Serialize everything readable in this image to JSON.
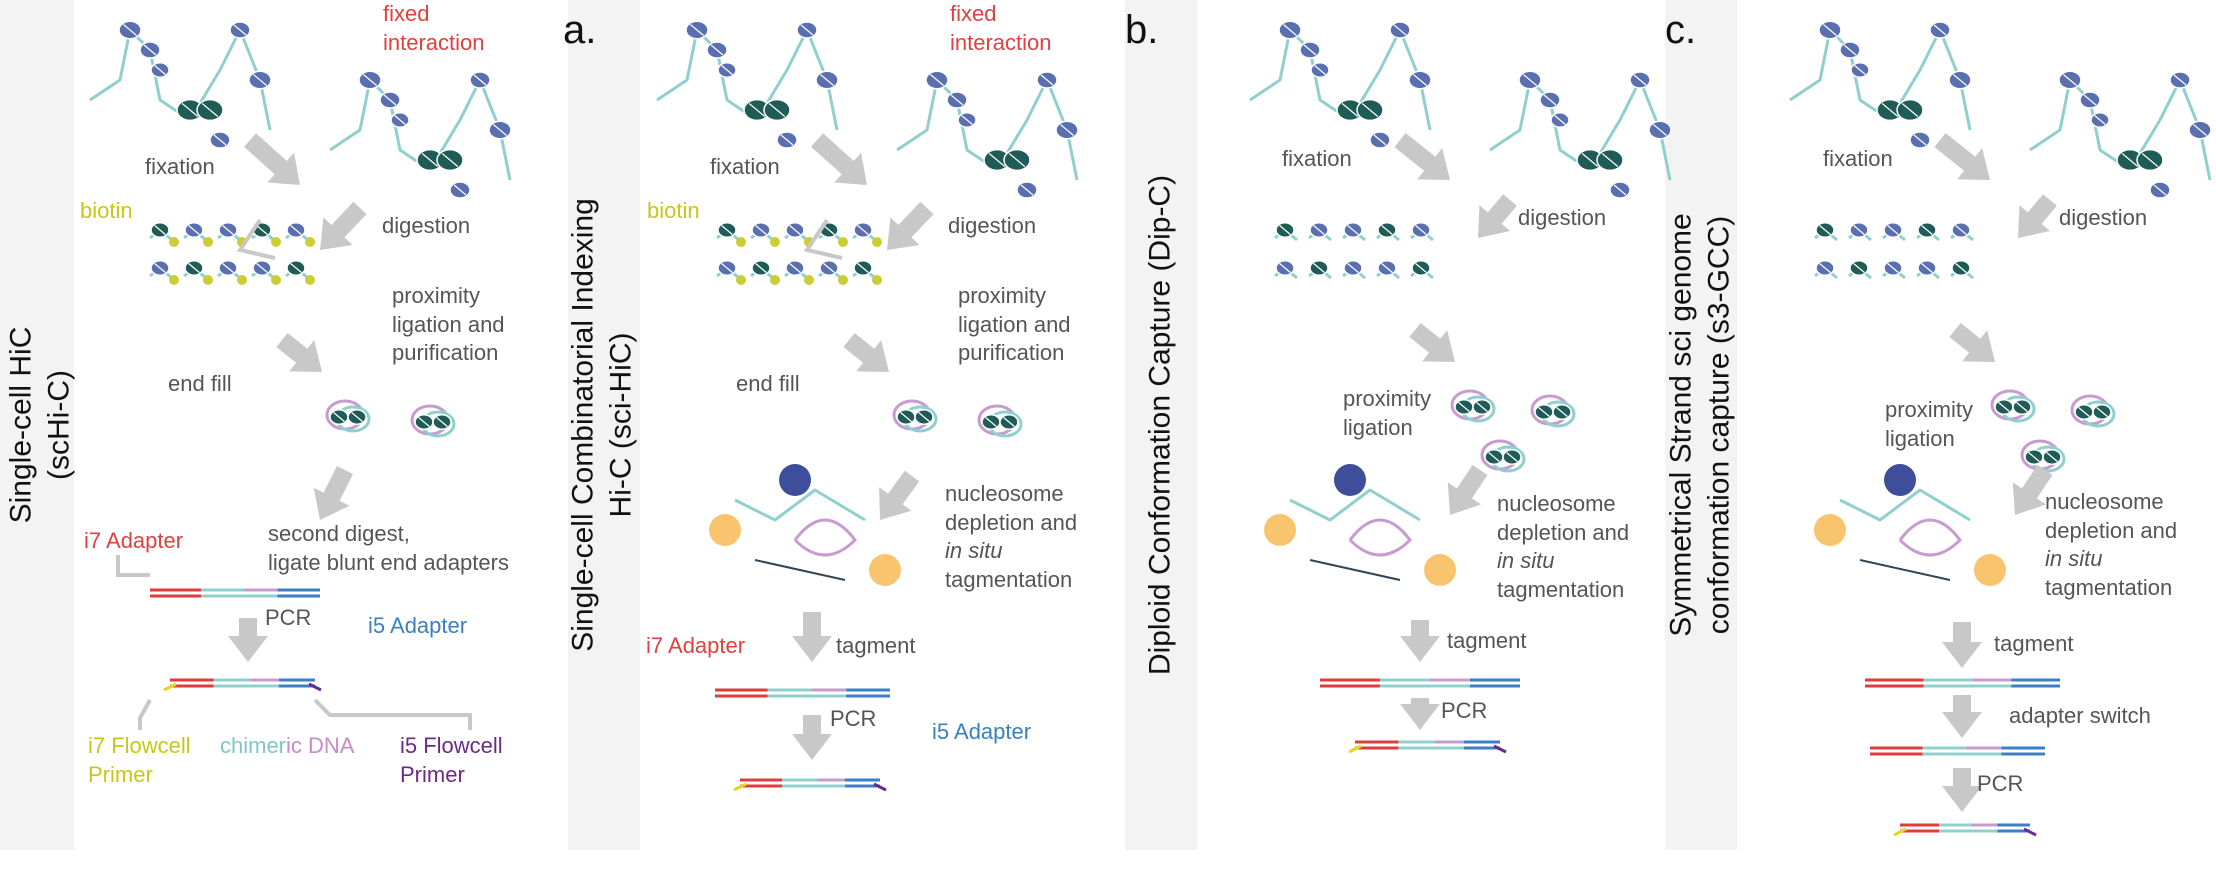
{
  "panels": {
    "schic": {
      "side_title_line1": "Single-cell HiC",
      "side_title_line2": "(scHi-C)",
      "labels": {
        "fixed_interaction_1": "fixed",
        "fixed_interaction_2": "interaction",
        "fixation": "fixation",
        "biotin": "biotin",
        "digestion": "digestion",
        "proximity_1": "proximity",
        "proximity_2": "ligation and",
        "proximity_3": "purification",
        "end_fill": "end fill",
        "second_digest_1": "second digest,",
        "second_digest_2": "ligate blunt end adapters",
        "i7_adapter": "i7 Adapter",
        "pcr": "PCR",
        "i5_adapter": "i5 Adapter",
        "i7_flowcell_1": "i7 Flowcell",
        "i7_flowcell_2": "Primer",
        "chimeric_a": "chimer",
        "chimeric_b": "ic DNA",
        "i5_flowcell_1": "i5 Flowcell",
        "i5_flowcell_2": "Primer"
      }
    },
    "scihic": {
      "letter": "a.",
      "side_title_line1": "Single-cell Combinatorial Indexing",
      "side_title_line2": "Hi-C (sci-HiC)",
      "labels": {
        "fixed_interaction_1": "fixed",
        "fixed_interaction_2": "interaction",
        "fixation": "fixation",
        "biotin": "biotin",
        "digestion": "digestion",
        "proximity_1": "proximity",
        "proximity_2": "ligation and",
        "proximity_3": "purification",
        "end_fill": "end fill",
        "nucleosome_1": "nucleosome",
        "nucleosome_2": "depletion and",
        "nucleosome_3a": "in situ",
        "nucleosome_4": "tagmentation",
        "i7_adapter": "i7 Adapter",
        "tagment": "tagment",
        "pcr": "PCR",
        "i5_adapter": "i5 Adapter"
      }
    },
    "dipc": {
      "letter": "b.",
      "side_title_line1": "Diploid Conformation Capture (Dip-C)",
      "labels": {
        "fixation": "fixation",
        "digestion": "digestion",
        "proximity_1": "proximity",
        "proximity_2": "ligation",
        "nucleosome_1": "nucleosome",
        "nucleosome_2": "depletion and",
        "nucleosome_3a": "in situ",
        "nucleosome_4": "tagmentation",
        "tagment": "tagment",
        "pcr": "PCR"
      }
    },
    "s3gcc": {
      "letter": "c.",
      "side_title_line1": "Symmetrical Strand sci genome",
      "side_title_line2": "conformation capture (s3-GCC)",
      "labels": {
        "fixation": "fixation",
        "digestion": "digestion",
        "proximity_1": "proximity",
        "proximity_2": "ligation",
        "nucleosome_1": "nucleosome",
        "nucleosome_2": "depletion and",
        "nucleosome_3a": "in situ",
        "nucleosome_4": "tagmentation",
        "tagment": "tagment",
        "adapter_switch": "adapter switch",
        "pcr": "PCR"
      }
    }
  },
  "colors": {
    "arrow_gray": "#c8c8c8",
    "nucleosome_dark": "#1f5c57",
    "nucleosome_blue": "#5a6fb0",
    "dna_teal": "#8fd0cf",
    "dna_pink": "#c79bd0",
    "biotin_yellow": "#cccc33",
    "adapter_red": "#e23b3b",
    "adapter_blue": "#3d7fc4",
    "tn5_orange": "#f7bf5e",
    "tn5_navy": "#2a3b8f"
  },
  "icons": [
    "chromatin-fiber-icon",
    "nucleosome-icon",
    "process-arrow-icon",
    "dna-fragment-icon",
    "biotin-dot-icon",
    "tn5-transposase-icon"
  ]
}
